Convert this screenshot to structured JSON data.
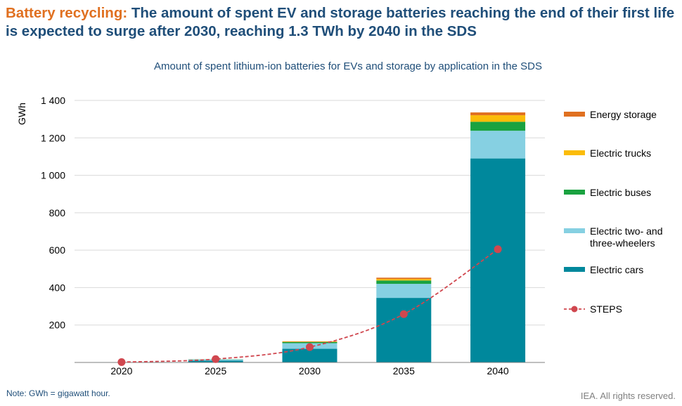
{
  "title": {
    "lead": "Battery recycling:",
    "text": " The amount of spent EV and storage batteries reaching the end of their first life is expected to surge after 2030, reaching 1.3 TWh by 2040 in the SDS"
  },
  "note": "Note: GWh = gigawatt hour.",
  "credit": "IEA. All rights reserved.",
  "chart_data": {
    "type": "bar",
    "stacked": true,
    "title": "Amount of spent lithium-ion batteries for EVs and storage by application in the SDS",
    "ylabel": "GWh",
    "xlabel": "",
    "ylim": [
      0,
      1400
    ],
    "yticks": [
      0,
      200,
      400,
      600,
      800,
      1000,
      1200,
      1400
    ],
    "ytick_labels": [
      "",
      "200",
      "400",
      "600",
      "800",
      "1 000",
      "1 200",
      "1 400"
    ],
    "grid": true,
    "legend_position": "right",
    "categories": [
      "2020",
      "2025",
      "2030",
      "2035",
      "2040"
    ],
    "series": [
      {
        "name": "Electric cars",
        "color": "#00889c",
        "values": [
          1,
          10,
          73,
          345,
          1090
        ]
      },
      {
        "name": "Electric two- and three-wheelers",
        "color": "#86d0e2",
        "values": [
          1,
          6,
          30,
          75,
          148
        ]
      },
      {
        "name": "Electric buses",
        "color": "#1aa240",
        "values": [
          0,
          1,
          6,
          18,
          48
        ]
      },
      {
        "name": "Electric trucks",
        "color": "#fbbc09",
        "values": [
          0,
          0,
          2,
          8,
          35
        ]
      },
      {
        "name": "Energy storage",
        "color": "#e07020",
        "values": [
          0,
          0,
          2,
          7,
          15
        ]
      }
    ],
    "line_series": {
      "name": "STEPS",
      "color": "#d0474f",
      "style": "dashed",
      "marker": "circle",
      "values": [
        2,
        18,
        82,
        258,
        605
      ]
    },
    "legend": [
      {
        "name": "Energy storage",
        "lines": [
          "Energy storage"
        ],
        "kind": "bar",
        "color": "#e07020"
      },
      {
        "name": "Electric trucks",
        "lines": [
          "Electric trucks"
        ],
        "kind": "bar",
        "color": "#fbbc09"
      },
      {
        "name": "Electric buses",
        "lines": [
          "Electric buses"
        ],
        "kind": "bar",
        "color": "#1aa240"
      },
      {
        "name": "Electric two- and three-wheelers",
        "lines": [
          "Electric two- and",
          "three-wheelers"
        ],
        "kind": "bar",
        "color": "#86d0e2"
      },
      {
        "name": "Electric cars",
        "lines": [
          "Electric cars"
        ],
        "kind": "bar",
        "color": "#00889c"
      },
      {
        "name": "STEPS",
        "lines": [
          "STEPS"
        ],
        "kind": "line",
        "color": "#d0474f"
      }
    ]
  }
}
